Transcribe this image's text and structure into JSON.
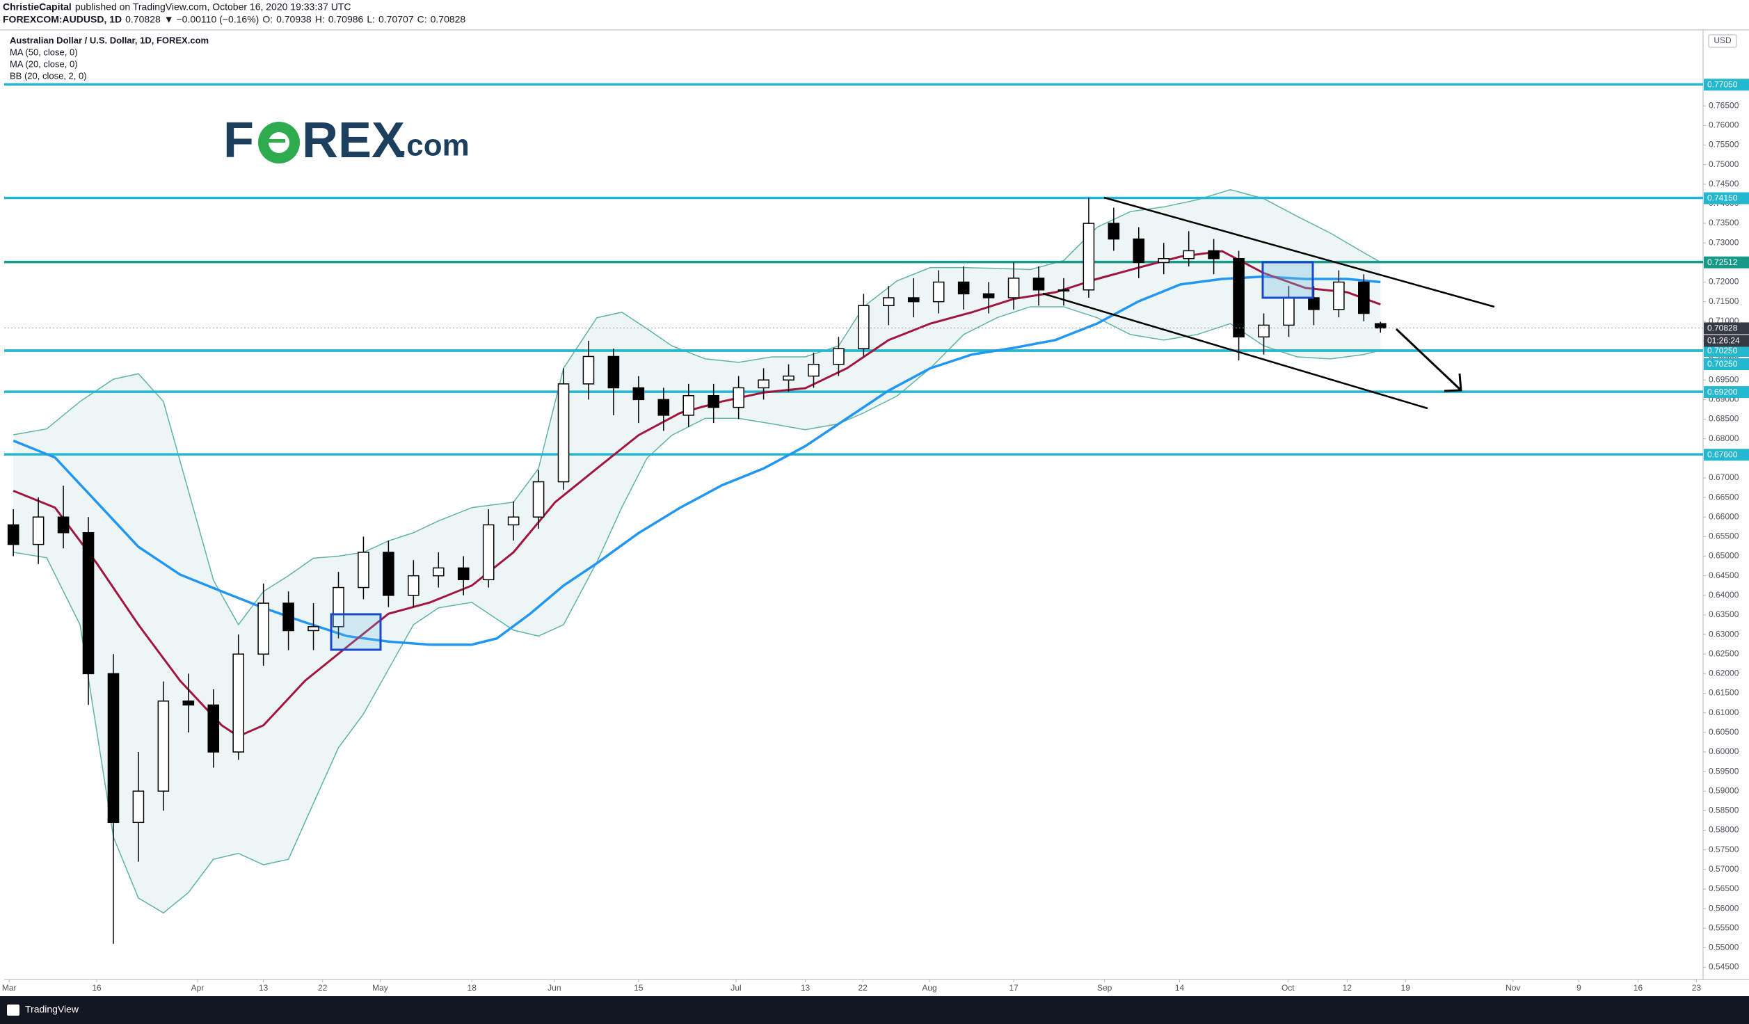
{
  "header": {
    "publisher": "ChristieCapital",
    "published": "published on TradingView.com, October 16, 2020 19:33:37 UTC",
    "symbol": "FOREXCOM:AUDUSD, 1D",
    "change": "▼ −0.00110 (−0.16%)",
    "o_label": "O:",
    "h_label": "H:",
    "l_label": "L:",
    "c_label": "C:"
  },
  "branding": {
    "f": "F",
    "rex": "REX",
    "dotcom": ".com"
  },
  "footer": "TradingView",
  "currency": "USD",
  "countdown": "01:26:24",
  "chart_data": {
    "type": "candlestick",
    "title": "Australian Dollar / U.S. Dollar, 1D, FOREX.com",
    "xlim": [
      -1.1,
      202.7
    ],
    "ylim": [
      0.5419,
      0.7844
    ],
    "candles": {
      "x": [
        0,
        3,
        6,
        9,
        12,
        15,
        18,
        21,
        24,
        27,
        30,
        33,
        36,
        39,
        42,
        45,
        48,
        51,
        54,
        57,
        60,
        63,
        66,
        69,
        72,
        75,
        78,
        81,
        84,
        87,
        90,
        93,
        96,
        99,
        102,
        105,
        108,
        111,
        114,
        117,
        120,
        123,
        126,
        129,
        132,
        135,
        138,
        141,
        144,
        147,
        150,
        153,
        156,
        159,
        162,
        164
      ],
      "open": [
        0.658,
        0.653,
        0.66,
        0.656,
        0.62,
        0.582,
        0.59,
        0.613,
        0.612,
        0.6,
        0.625,
        0.638,
        0.631,
        0.632,
        0.642,
        0.651,
        0.64,
        0.645,
        0.647,
        0.644,
        0.658,
        0.66,
        0.669,
        0.694,
        0.701,
        0.693,
        0.69,
        0.686,
        0.691,
        0.688,
        0.693,
        0.695,
        0.696,
        0.699,
        0.703,
        0.714,
        0.716,
        0.715,
        0.72,
        0.717,
        0.716,
        0.721,
        0.718,
        0.718,
        0.735,
        0.731,
        0.725,
        0.726,
        0.728,
        0.726,
        0.706,
        0.709,
        0.716,
        0.713,
        0.72,
        0.70938
      ],
      "high": [
        0.662,
        0.665,
        0.668,
        0.66,
        0.625,
        0.6,
        0.618,
        0.62,
        0.616,
        0.63,
        0.643,
        0.641,
        0.638,
        0.646,
        0.655,
        0.654,
        0.649,
        0.651,
        0.65,
        0.662,
        0.664,
        0.672,
        0.698,
        0.705,
        0.703,
        0.696,
        0.693,
        0.694,
        0.694,
        0.696,
        0.698,
        0.699,
        0.702,
        0.706,
        0.717,
        0.719,
        0.721,
        0.723,
        0.724,
        0.72,
        0.725,
        0.724,
        0.721,
        0.7415,
        0.739,
        0.734,
        0.73,
        0.733,
        0.731,
        0.728,
        0.712,
        0.719,
        0.719,
        0.723,
        0.722,
        0.70986
      ],
      "low": [
        0.65,
        0.648,
        0.652,
        0.612,
        0.551,
        0.572,
        0.585,
        0.605,
        0.596,
        0.598,
        0.622,
        0.626,
        0.626,
        0.629,
        0.639,
        0.637,
        0.637,
        0.642,
        0.64,
        0.642,
        0.654,
        0.657,
        0.667,
        0.69,
        0.686,
        0.684,
        0.682,
        0.683,
        0.684,
        0.685,
        0.69,
        0.692,
        0.693,
        0.696,
        0.701,
        0.709,
        0.711,
        0.712,
        0.713,
        0.712,
        0.713,
        0.714,
        0.714,
        0.716,
        0.728,
        0.721,
        0.722,
        0.724,
        0.722,
        0.7,
        0.7015,
        0.706,
        0.709,
        0.711,
        0.71,
        0.70707
      ],
      "close": [
        0.653,
        0.66,
        0.656,
        0.62,
        0.582,
        0.59,
        0.613,
        0.612,
        0.6,
        0.625,
        0.638,
        0.631,
        0.632,
        0.642,
        0.651,
        0.64,
        0.645,
        0.647,
        0.644,
        0.658,
        0.66,
        0.669,
        0.694,
        0.701,
        0.693,
        0.69,
        0.686,
        0.691,
        0.688,
        0.693,
        0.695,
        0.696,
        0.699,
        0.703,
        0.714,
        0.716,
        0.715,
        0.72,
        0.717,
        0.716,
        0.721,
        0.718,
        0.718,
        0.735,
        0.731,
        0.725,
        0.726,
        0.728,
        0.726,
        0.706,
        0.709,
        0.716,
        0.713,
        0.72,
        0.712,
        0.70828
      ],
      "up_color": "#ffffff",
      "down_color": "#000000"
    },
    "series": [
      {
        "name": "MA (50, close, 0)",
        "color": "#2196f3",
        "x": [
          0,
          5,
          10,
          15,
          20,
          25,
          30,
          35,
          40,
          45,
          50,
          55,
          58,
          62,
          66,
          70,
          75,
          80,
          85,
          90,
          95,
          100,
          105,
          110,
          115,
          120,
          125,
          130,
          135,
          140,
          145,
          150,
          155,
          160,
          164
        ],
        "values": [
          0.6795,
          0.6752,
          0.6638,
          0.6524,
          0.6453,
          0.641,
          0.6368,
          0.6331,
          0.6296,
          0.6282,
          0.6274,
          0.6274,
          0.629,
          0.6353,
          0.6425,
          0.6482,
          0.6559,
          0.6624,
          0.6681,
          0.6724,
          0.6781,
          0.6852,
          0.6923,
          0.698,
          0.7015,
          0.7032,
          0.7052,
          0.7094,
          0.7151,
          0.7194,
          0.7208,
          0.7214,
          0.7208,
          0.7208,
          0.72
        ]
      },
      {
        "name": "MA (20, close, 0)",
        "color": "#a1153f",
        "x": [
          0,
          5,
          10,
          15,
          20,
          25,
          27,
          30,
          35,
          40,
          45,
          50,
          55,
          60,
          65,
          70,
          75,
          80,
          85,
          90,
          95,
          100,
          105,
          110,
          115,
          120,
          125,
          130,
          135,
          140,
          145,
          150,
          155,
          160,
          164
        ],
        "values": [
          0.6667,
          0.6624,
          0.6482,
          0.6325,
          0.6182,
          0.6068,
          0.604,
          0.6068,
          0.6182,
          0.6268,
          0.6353,
          0.6382,
          0.6425,
          0.651,
          0.6638,
          0.6724,
          0.6809,
          0.6866,
          0.6895,
          0.6918,
          0.6929,
          0.698,
          0.7052,
          0.7094,
          0.7123,
          0.7157,
          0.7174,
          0.7208,
          0.7237,
          0.7265,
          0.7279,
          0.7223,
          0.7185,
          0.7174,
          0.7143
        ]
      }
    ],
    "bollinger": {
      "name": "BB (20, close, 2, 0)",
      "color": "#5fb3a5",
      "fill": "#eef6f5",
      "x": [
        0,
        4,
        8,
        12,
        15,
        18,
        21,
        24,
        27,
        30,
        33,
        36,
        39,
        42,
        45,
        48,
        51,
        55,
        60,
        63,
        66,
        70,
        73,
        76,
        79,
        83,
        87,
        91,
        95,
        99,
        102,
        106,
        110,
        114,
        118,
        122,
        126,
        130,
        134,
        138,
        142,
        146,
        150,
        154,
        158,
        162,
        164
      ],
      "upper": [
        0.681,
        0.6825,
        0.6895,
        0.6952,
        0.6966,
        0.6895,
        0.6667,
        0.6439,
        0.6325,
        0.641,
        0.645,
        0.6495,
        0.65,
        0.651,
        0.6539,
        0.656,
        0.659,
        0.6624,
        0.6638,
        0.6724,
        0.698,
        0.7109,
        0.7123,
        0.7081,
        0.7037,
        0.7004,
        0.6995,
        0.7009,
        0.7009,
        0.7037,
        0.7137,
        0.7203,
        0.7237,
        0.7237,
        0.7235,
        0.7232,
        0.7255,
        0.734,
        0.738,
        0.7392,
        0.741,
        0.7436,
        0.7413,
        0.7368,
        0.7325,
        0.7275,
        0.7251
      ],
      "lower": [
        0.651,
        0.6496,
        0.6325,
        0.5783,
        0.5627,
        0.5589,
        0.5641,
        0.5726,
        0.5741,
        0.5712,
        0.5726,
        0.5869,
        0.6011,
        0.6097,
        0.6211,
        0.6325,
        0.6368,
        0.6382,
        0.6311,
        0.6296,
        0.6325,
        0.6485,
        0.6625,
        0.675,
        0.6809,
        0.6852,
        0.6852,
        0.6838,
        0.6823,
        0.6838,
        0.6866,
        0.6909,
        0.698,
        0.7066,
        0.7109,
        0.7137,
        0.7137,
        0.7109,
        0.7066,
        0.7052,
        0.7066,
        0.7094,
        0.7037,
        0.7009,
        0.7004,
        0.7015,
        0.7026
      ]
    },
    "levels": [
      {
        "value": 0.7705,
        "label": "0.77050",
        "color": "#22b8d0"
      },
      {
        "value": 0.7415,
        "label": "0.74150",
        "color": "#22b8d0"
      },
      {
        "value": 0.72512,
        "label": "0.72512",
        "color": "#17998a"
      },
      {
        "value": 0.7025,
        "label": "0.70250",
        "color": "#22b8d0"
      },
      {
        "value": 0.7025,
        "label": "0.70250",
        "color": "#22b8d0"
      },
      {
        "value": 0.692,
        "label": "0.69200",
        "color": "#22b8d0"
      },
      {
        "value": 0.676,
        "label": "0.67600",
        "color": "#22b8d0"
      }
    ],
    "yticks": [
      {
        "value": 0.545,
        "label": "0.54500"
      },
      {
        "value": 0.55,
        "label": "0.55000"
      },
      {
        "value": 0.555,
        "label": "0.55500"
      },
      {
        "value": 0.56,
        "label": "0.56000"
      },
      {
        "value": 0.565,
        "label": "0.56500"
      },
      {
        "value": 0.57,
        "label": "0.57000"
      },
      {
        "value": 0.575,
        "label": "0.57500"
      },
      {
        "value": 0.58,
        "label": "0.58000"
      },
      {
        "value": 0.585,
        "label": "0.58500"
      },
      {
        "value": 0.59,
        "label": "0.59000"
      },
      {
        "value": 0.595,
        "label": "0.59500"
      },
      {
        "value": 0.6,
        "label": "0.60000"
      },
      {
        "value": 0.605,
        "label": "0.60500"
      },
      {
        "value": 0.61,
        "label": "0.61000"
      },
      {
        "value": 0.615,
        "label": "0.61500"
      },
      {
        "value": 0.62,
        "label": "0.62000"
      },
      {
        "value": 0.625,
        "label": "0.62500"
      },
      {
        "value": 0.63,
        "label": "0.63000"
      },
      {
        "value": 0.635,
        "label": "0.63500"
      },
      {
        "value": 0.64,
        "label": "0.64000"
      },
      {
        "value": 0.645,
        "label": "0.64500"
      },
      {
        "value": 0.65,
        "label": "0.65000"
      },
      {
        "value": 0.655,
        "label": "0.65500"
      },
      {
        "value": 0.66,
        "label": "0.66000"
      },
      {
        "value": 0.665,
        "label": "0.66500"
      },
      {
        "value": 0.67,
        "label": "0.67000"
      },
      {
        "value": 0.675,
        "label": "0.67500"
      },
      {
        "value": 0.68,
        "label": "0.68000"
      },
      {
        "value": 0.685,
        "label": "0.68500"
      },
      {
        "value": 0.69,
        "label": "0.69000"
      },
      {
        "value": 0.695,
        "label": "0.69500"
      },
      {
        "value": 0.7,
        "label": "0.70000"
      },
      {
        "value": 0.705,
        "label": "0.70500"
      },
      {
        "value": 0.71,
        "label": "0.71000"
      },
      {
        "value": 0.715,
        "label": "0.71500"
      },
      {
        "value": 0.72,
        "label": "0.72000"
      },
      {
        "value": 0.725,
        "label": "0.72500"
      },
      {
        "value": 0.73,
        "label": "0.73000"
      },
      {
        "value": 0.735,
        "label": "0.73500"
      },
      {
        "value": 0.74,
        "label": "0.74000"
      },
      {
        "value": 0.745,
        "label": "0.74500"
      },
      {
        "value": 0.75,
        "label": "0.75000"
      },
      {
        "value": 0.755,
        "label": "0.75500"
      },
      {
        "value": 0.76,
        "label": "0.76000"
      },
      {
        "value": 0.765,
        "label": "0.76500"
      }
    ],
    "xticks": [
      {
        "value": -0.5,
        "label": "Mar"
      },
      {
        "value": 10,
        "label": "16"
      },
      {
        "value": 22.1,
        "label": "Apr"
      },
      {
        "value": 30,
        "label": "13"
      },
      {
        "value": 37.1,
        "label": "22"
      },
      {
        "value": 44,
        "label": "May"
      },
      {
        "value": 55,
        "label": "18"
      },
      {
        "value": 64.9,
        "label": "Jun"
      },
      {
        "value": 75,
        "label": "15"
      },
      {
        "value": 86.7,
        "label": "Jul"
      },
      {
        "value": 95,
        "label": "13"
      },
      {
        "value": 101.9,
        "label": "22"
      },
      {
        "value": 109.9,
        "label": "Aug"
      },
      {
        "value": 120,
        "label": "17"
      },
      {
        "value": 130.9,
        "label": "Sep"
      },
      {
        "value": 139.9,
        "label": "14"
      },
      {
        "value": 152.9,
        "label": "Oct"
      },
      {
        "value": 160,
        "label": "12"
      },
      {
        "value": 167,
        "label": "19"
      },
      {
        "value": 179.9,
        "label": "Nov"
      },
      {
        "value": 187.8,
        "label": "9"
      },
      {
        "value": 194.9,
        "label": "16"
      },
      {
        "value": 201.9,
        "label": "23"
      }
    ]
  }
}
